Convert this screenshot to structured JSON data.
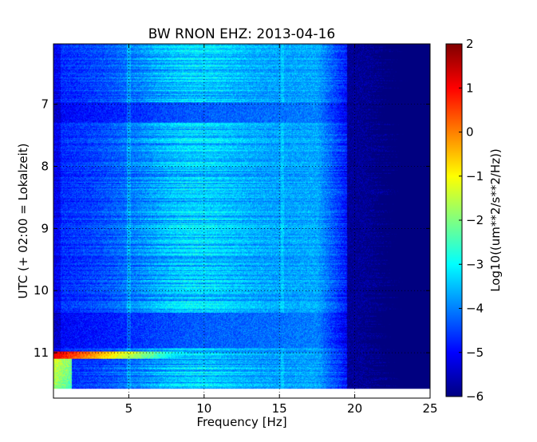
{
  "chart_data": {
    "type": "heatmap",
    "title": "BW RNON EHZ: 2013-04-16",
    "xlabel": "Frequency [Hz]",
    "ylabel": "UTC (+ 02:00 = Lokalzeit)",
    "xlim": [
      0,
      25
    ],
    "ylim": [
      6.03,
      11.73
    ],
    "x_ticks": [
      {
        "value": 5,
        "label": "5"
      },
      {
        "value": 10,
        "label": "10"
      },
      {
        "value": 15,
        "label": "15"
      },
      {
        "value": 20,
        "label": "20"
      },
      {
        "value": 25,
        "label": "25"
      }
    ],
    "y_ticks": [
      {
        "value": 7,
        "label": "7"
      },
      {
        "value": 8,
        "label": "8"
      },
      {
        "value": 9,
        "label": "9"
      },
      {
        "value": 10,
        "label": "10"
      },
      {
        "value": 11,
        "label": "11"
      }
    ],
    "grid": true,
    "data_end_hour": 11.58,
    "colorbar": {
      "label": "Log10((um**2/s**2/Hz))",
      "range": [
        -6,
        2
      ],
      "colormap": "jet",
      "ticks": [
        {
          "value": 2,
          "label": "2"
        },
        {
          "value": 1,
          "label": "1"
        },
        {
          "value": 0,
          "label": "0"
        },
        {
          "value": -1,
          "label": "−1"
        },
        {
          "value": -2,
          "label": "−2"
        },
        {
          "value": -3,
          "label": "−3"
        },
        {
          "value": -4,
          "label": "−4"
        },
        {
          "value": -5,
          "label": "−5"
        },
        {
          "value": -6,
          "label": "−6"
        }
      ]
    },
    "features": {
      "high_power_event_hour": 10.92,
      "high_power_event_peak": 1.4,
      "quiet_hours": [
        6.95,
        7.28,
        10.28,
        10.84
      ],
      "background_level": -5.1,
      "dominant_band_hz": [
        7,
        11
      ]
    }
  }
}
